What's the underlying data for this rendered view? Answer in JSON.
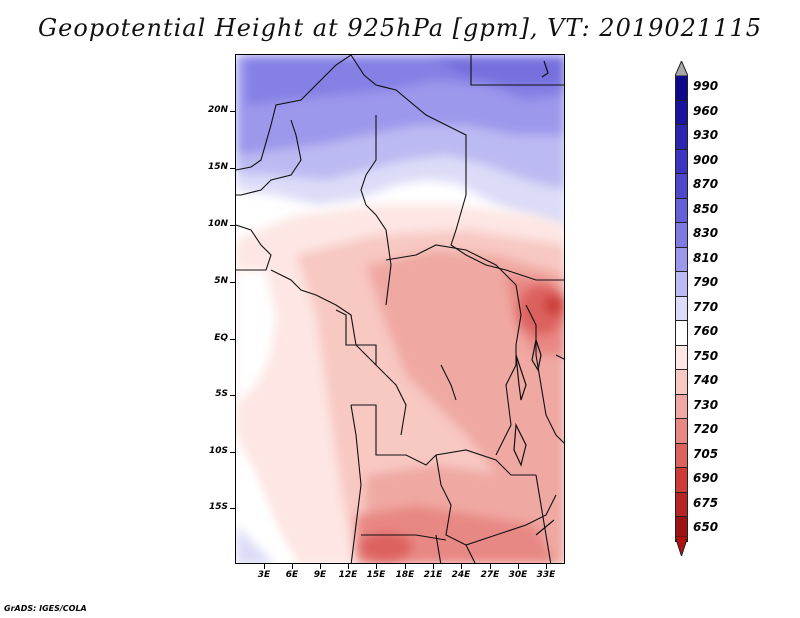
{
  "title": "Geopotential Height at 925hPa [gpm], VT: 2019021115",
  "credit": "GrADS: IGES/COLA",
  "chart_data": {
    "type": "heatmap",
    "variable": "Geopotential Height",
    "level": "925hPa",
    "units": "gpm",
    "valid_time": "2019021115",
    "x_ticks": [
      "3E",
      "6E",
      "9E",
      "12E",
      "15E",
      "18E",
      "21E",
      "24E",
      "27E",
      "30E",
      "33E"
    ],
    "y_ticks": [
      "20N",
      "15N",
      "10N",
      "5N",
      "EQ",
      "5S",
      "10S",
      "15S"
    ],
    "lon_range": [
      0,
      35
    ],
    "lat_range": [
      -20,
      25
    ],
    "colorbar": {
      "levels": [
        "990",
        "960",
        "930",
        "900",
        "870",
        "850",
        "830",
        "810",
        "790",
        "770",
        "760",
        "750",
        "740",
        "730",
        "720",
        "705",
        "690",
        "675",
        "650"
      ],
      "colors": [
        "#0c0a8a",
        "#18149e",
        "#2a26b0",
        "#3a36c0",
        "#4c48cc",
        "#6460d8",
        "#7e7ae2",
        "#9c98ec",
        "#bcbaf2",
        "#dcdcf8",
        "#ffffff",
        "#fde6e3",
        "#f8c8c2",
        "#f0a8a2",
        "#e88884",
        "#dc625e",
        "#cc3c38",
        "#b42626",
        "#9a1414"
      ]
    }
  }
}
